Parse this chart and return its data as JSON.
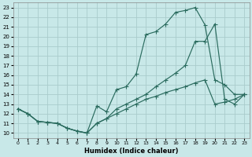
{
  "xlabel": "Humidex (Indice chaleur)",
  "bg_color": "#c8e8e8",
  "grid_color": "#aacccc",
  "line_color": "#2a6b5e",
  "xlim": [
    -0.5,
    23.5
  ],
  "ylim": [
    9.5,
    23.5
  ],
  "xticks": [
    0,
    1,
    2,
    3,
    4,
    5,
    6,
    7,
    8,
    9,
    10,
    11,
    12,
    13,
    14,
    15,
    16,
    17,
    18,
    19,
    20,
    21,
    22,
    23
  ],
  "yticks": [
    10,
    11,
    12,
    13,
    14,
    15,
    16,
    17,
    18,
    19,
    20,
    21,
    22,
    23
  ],
  "curve1_x": [
    0,
    1,
    2,
    3,
    4,
    5,
    6,
    7,
    8,
    9,
    10,
    11,
    12,
    13,
    14,
    15,
    16,
    17,
    18,
    19,
    20,
    21,
    22,
    23
  ],
  "curve1_y": [
    12.5,
    12.0,
    11.2,
    11.1,
    11.0,
    10.5,
    10.2,
    10.0,
    12.8,
    12.2,
    14.5,
    14.8,
    16.1,
    20.2,
    20.5,
    21.3,
    22.5,
    22.7,
    23.0,
    21.2,
    15.5,
    15.0,
    14.0,
    14.0
  ],
  "curve2_x": [
    0,
    1,
    2,
    3,
    4,
    5,
    6,
    7,
    8,
    9,
    10,
    11,
    12,
    13,
    14,
    15,
    16,
    17,
    18,
    19,
    20,
    21,
    22,
    23
  ],
  "curve2_y": [
    12.5,
    12.0,
    11.2,
    11.1,
    11.0,
    10.5,
    10.2,
    10.0,
    11.0,
    11.5,
    12.5,
    13.0,
    13.5,
    14.0,
    14.8,
    15.5,
    16.2,
    17.0,
    19.5,
    19.5,
    21.3,
    13.5,
    13.0,
    14.0
  ],
  "curve3_x": [
    0,
    1,
    2,
    3,
    4,
    5,
    6,
    7,
    8,
    9,
    10,
    11,
    12,
    13,
    14,
    15,
    16,
    17,
    18,
    19,
    20,
    21,
    22,
    23
  ],
  "curve3_y": [
    12.5,
    12.0,
    11.2,
    11.1,
    11.0,
    10.5,
    10.2,
    10.0,
    11.0,
    11.5,
    12.0,
    12.5,
    13.0,
    13.5,
    13.8,
    14.2,
    14.5,
    14.8,
    15.2,
    15.5,
    13.0,
    13.2,
    13.5,
    14.0
  ]
}
